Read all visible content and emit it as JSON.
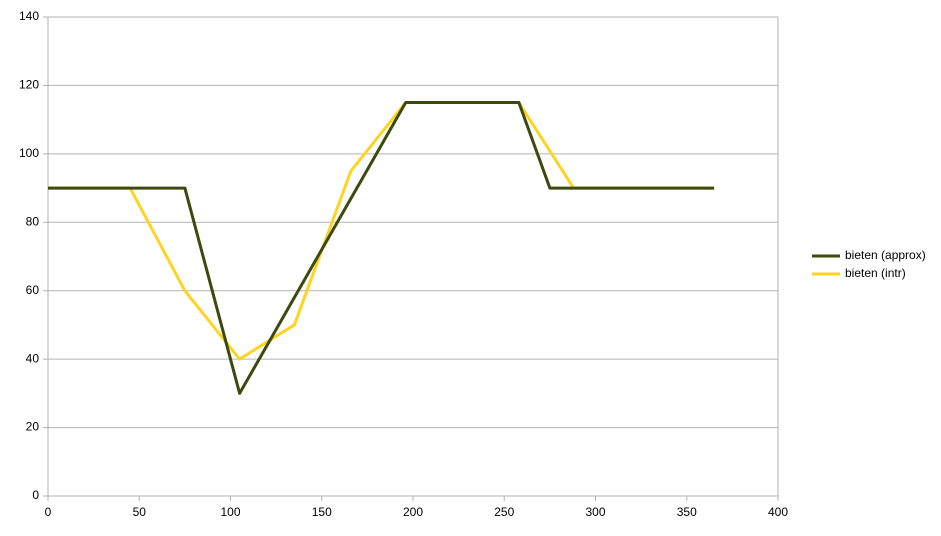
{
  "chart_data": {
    "type": "line",
    "series": [
      {
        "name": "bieten (approx)",
        "color": "#3c4a0e",
        "x": [
          0,
          75,
          105,
          196,
          258,
          275,
          365
        ],
        "values": [
          90,
          90,
          30,
          115,
          115,
          90,
          90
        ]
      },
      {
        "name": "bieten (intr)",
        "color": "#ffd320",
        "x": [
          0,
          45,
          75,
          105,
          135,
          166,
          196,
          258,
          288,
          365
        ],
        "values": [
          90,
          90,
          60,
          40,
          50,
          95,
          115,
          115,
          90,
          90
        ]
      }
    ],
    "xlim": [
      0,
      400
    ],
    "xticks": [
      0,
      50,
      100,
      150,
      200,
      250,
      300,
      350,
      400
    ],
    "ylim": [
      0,
      140
    ],
    "yticks": [
      0,
      20,
      40,
      60,
      80,
      100,
      120,
      140
    ],
    "grid": true,
    "legend": "right"
  }
}
